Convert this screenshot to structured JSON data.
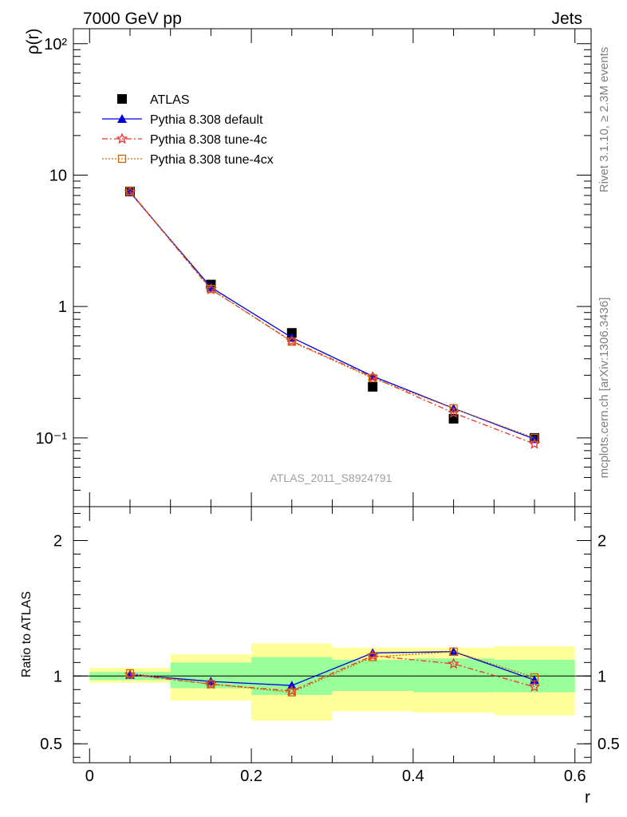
{
  "header": {
    "left": "7000 GeV pp",
    "right": "Jets"
  },
  "watermark": "ATLAS_2011_S8924791",
  "side_texts": {
    "top": "Rivet 3.1.10, ≥ 2.3M events",
    "bottom": "mcplots.cern.ch [arXiv:1306.3436]"
  },
  "colors": {
    "atlas": "#000000",
    "default": "#0000dd",
    "tune4c": "#ee3333",
    "tune4cx": "#cc6600",
    "band_inner": "#99ff99",
    "band_outer": "#ffff99"
  },
  "chart_data": [
    {
      "type": "line",
      "ylabel": "ρ(r)",
      "yscale": "log",
      "ylim": [
        0.03,
        130
      ],
      "xlim": [
        -0.02,
        0.62
      ],
      "yticklabels": [
        "10⁻¹",
        "1",
        "10",
        "10²"
      ],
      "x": [
        0.05,
        0.15,
        0.25,
        0.35,
        0.45,
        0.55
      ],
      "series": [
        {
          "name": "ATLAS",
          "marker": "square",
          "values": [
            7.5,
            1.47,
            0.63,
            0.245,
            0.14,
            0.1
          ]
        },
        {
          "name": "Pythia 8.308 default",
          "marker": "triangle",
          "values": [
            7.4,
            1.4,
            0.58,
            0.295,
            0.168,
            0.098
          ]
        },
        {
          "name": "Pythia 8.308 tune-4c",
          "marker": "star",
          "values": [
            7.45,
            1.35,
            0.545,
            0.29,
            0.155,
            0.09
          ]
        },
        {
          "name": "Pythia 8.308 tune-4cx",
          "marker": "open-square",
          "values": [
            7.55,
            1.36,
            0.54,
            0.285,
            0.168,
            0.1
          ]
        }
      ]
    },
    {
      "type": "line",
      "ylabel": "Ratio to ATLAS",
      "xlabel": "r",
      "ylim": [
        0.36,
        2.25
      ],
      "xticklabels": [
        "0",
        "0.2",
        "0.4",
        "0.6"
      ],
      "yticklabels": [
        "0.5",
        "1",
        "2"
      ],
      "x": [
        0.05,
        0.15,
        0.25,
        0.35,
        0.45,
        0.55
      ],
      "bands": [
        {
          "x0": 0.0,
          "x1": 0.1,
          "inner": [
            0.97,
            1.03
          ],
          "outer": [
            0.95,
            1.06
          ]
        },
        {
          "x0": 0.1,
          "x1": 0.2,
          "inner": [
            0.91,
            1.1
          ],
          "outer": [
            0.82,
            1.16
          ]
        },
        {
          "x0": 0.2,
          "x1": 0.3,
          "inner": [
            0.86,
            1.14
          ],
          "outer": [
            0.67,
            1.24
          ]
        },
        {
          "x0": 0.3,
          "x1": 0.4,
          "inner": [
            0.89,
            1.12
          ],
          "outer": [
            0.74,
            1.21
          ]
        },
        {
          "x0": 0.4,
          "x1": 0.5,
          "inner": [
            0.88,
            1.13
          ],
          "outer": [
            0.73,
            1.21
          ]
        },
        {
          "x0": 0.5,
          "x1": 0.6,
          "inner": [
            0.88,
            1.12
          ],
          "outer": [
            0.71,
            1.22
          ]
        }
      ],
      "series": [
        {
          "name": "Pythia 8.308 default",
          "values": [
            1.01,
            0.96,
            0.93,
            1.17,
            1.18,
            0.97
          ]
        },
        {
          "name": "Pythia 8.308 tune-4c",
          "values": [
            1.01,
            0.94,
            0.89,
            1.15,
            1.09,
            0.92
          ]
        },
        {
          "name": "Pythia 8.308 tune-4cx",
          "values": [
            1.02,
            0.94,
            0.88,
            1.14,
            1.18,
            0.99
          ]
        }
      ]
    }
  ]
}
